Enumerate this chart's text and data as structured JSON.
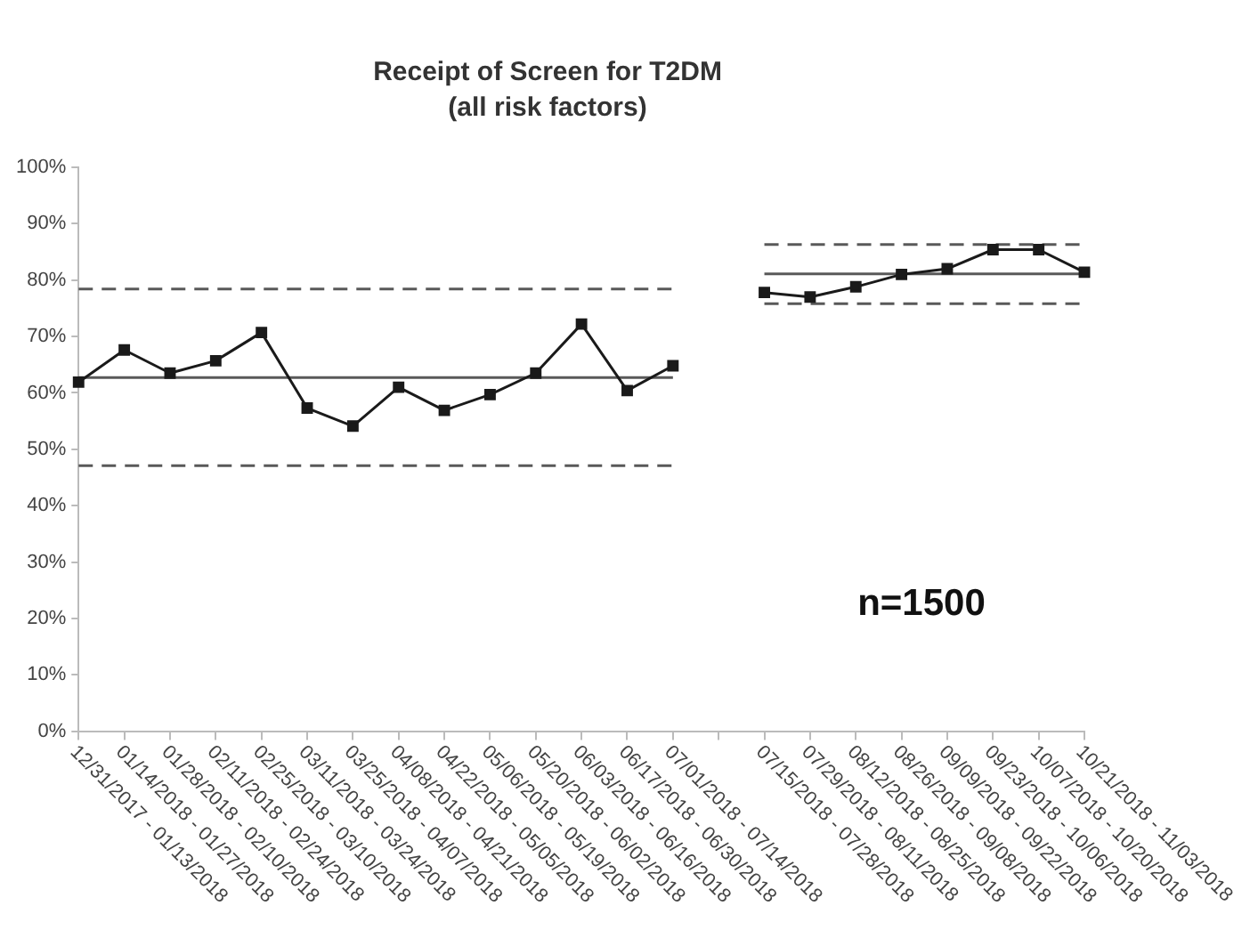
{
  "chart_data": {
    "type": "line",
    "title": "Receipt of Screen for T2DM",
    "subtitle": "(all risk factors)",
    "categories": [
      "12/31/2017 - 01/13/2018",
      "01/14/2018 - 01/27/2018",
      "01/28/2018 - 02/10/2018",
      "02/11/2018 - 02/24/2018",
      "02/25/2018 - 03/10/2018",
      "03/11/2018 - 03/24/2018",
      "03/25/2018 - 04/07/2018",
      "04/08/2018 - 04/21/2018",
      "04/22/2018 - 05/05/2018",
      "05/06/2018 - 05/19/2018",
      "05/20/2018 - 06/02/2018",
      "06/03/2018 - 06/16/2018",
      "06/17/2018 - 06/30/2018",
      "07/01/2018 - 07/14/2018",
      null,
      "07/15/2018 - 07/28/2018",
      "07/29/2018 - 08/11/2018",
      "08/12/2018 - 08/25/2018",
      "08/26/2018 - 09/08/2018",
      "09/09/2018 - 09/22/2018",
      "09/23/2018 - 10/06/2018",
      "10/07/2018 - 10/20/2018",
      "10/21/2018 - 11/03/2018"
    ],
    "series": [
      {
        "color": "#1a1a1a",
        "marker": "square",
        "line_style": "solid",
        "values": [
          61.9,
          67.6,
          63.5,
          65.7,
          70.7,
          57.3,
          54.1,
          61.0,
          56.9,
          59.7,
          63.5,
          72.2,
          60.4,
          64.8,
          null,
          77.8,
          77.0,
          78.8,
          81.0,
          82.0,
          85.4,
          85.4,
          81.4
        ]
      },
      {
        "color": "#595959",
        "marker": "none",
        "line_style": "solid",
        "values": [
          62.7,
          62.7,
          62.7,
          62.7,
          62.7,
          62.7,
          62.7,
          62.7,
          62.7,
          62.7,
          62.7,
          62.7,
          62.7,
          62.7,
          null,
          81.1,
          81.1,
          81.1,
          81.1,
          81.1,
          81.1,
          81.1,
          81.1
        ]
      },
      {
        "color": "#595959",
        "marker": "none",
        "line_style": "dashed",
        "values": [
          78.4,
          78.4,
          78.4,
          78.4,
          78.4,
          78.4,
          78.4,
          78.4,
          78.4,
          78.4,
          78.4,
          78.4,
          78.4,
          78.4,
          null,
          86.3,
          86.3,
          86.3,
          86.3,
          86.3,
          86.3,
          86.3,
          86.3
        ]
      },
      {
        "color": "#595959",
        "marker": "none",
        "line_style": "dashed",
        "values": [
          47.1,
          47.1,
          47.1,
          47.1,
          47.1,
          47.1,
          47.1,
          47.1,
          47.1,
          47.1,
          47.1,
          47.1,
          47.1,
          47.1,
          null,
          75.8,
          75.8,
          75.8,
          75.8,
          75.8,
          75.8,
          75.8,
          75.8
        ]
      }
    ],
    "ylim": [
      0,
      100
    ],
    "yticks": [
      {
        "value": 0,
        "label": "0%"
      },
      {
        "value": 10,
        "label": "10%"
      },
      {
        "value": 20,
        "label": "20%"
      },
      {
        "value": 30,
        "label": "30%"
      },
      {
        "value": 40,
        "label": "40%"
      },
      {
        "value": 50,
        "label": "50%"
      },
      {
        "value": 60,
        "label": "60%"
      },
      {
        "value": 70,
        "label": "70%"
      },
      {
        "value": 80,
        "label": "80%"
      },
      {
        "value": 90,
        "label": "90%"
      },
      {
        "value": 100,
        "label": "100%"
      }
    ],
    "grid": false,
    "legend": false,
    "annotations": [
      "n=1500"
    ]
  }
}
